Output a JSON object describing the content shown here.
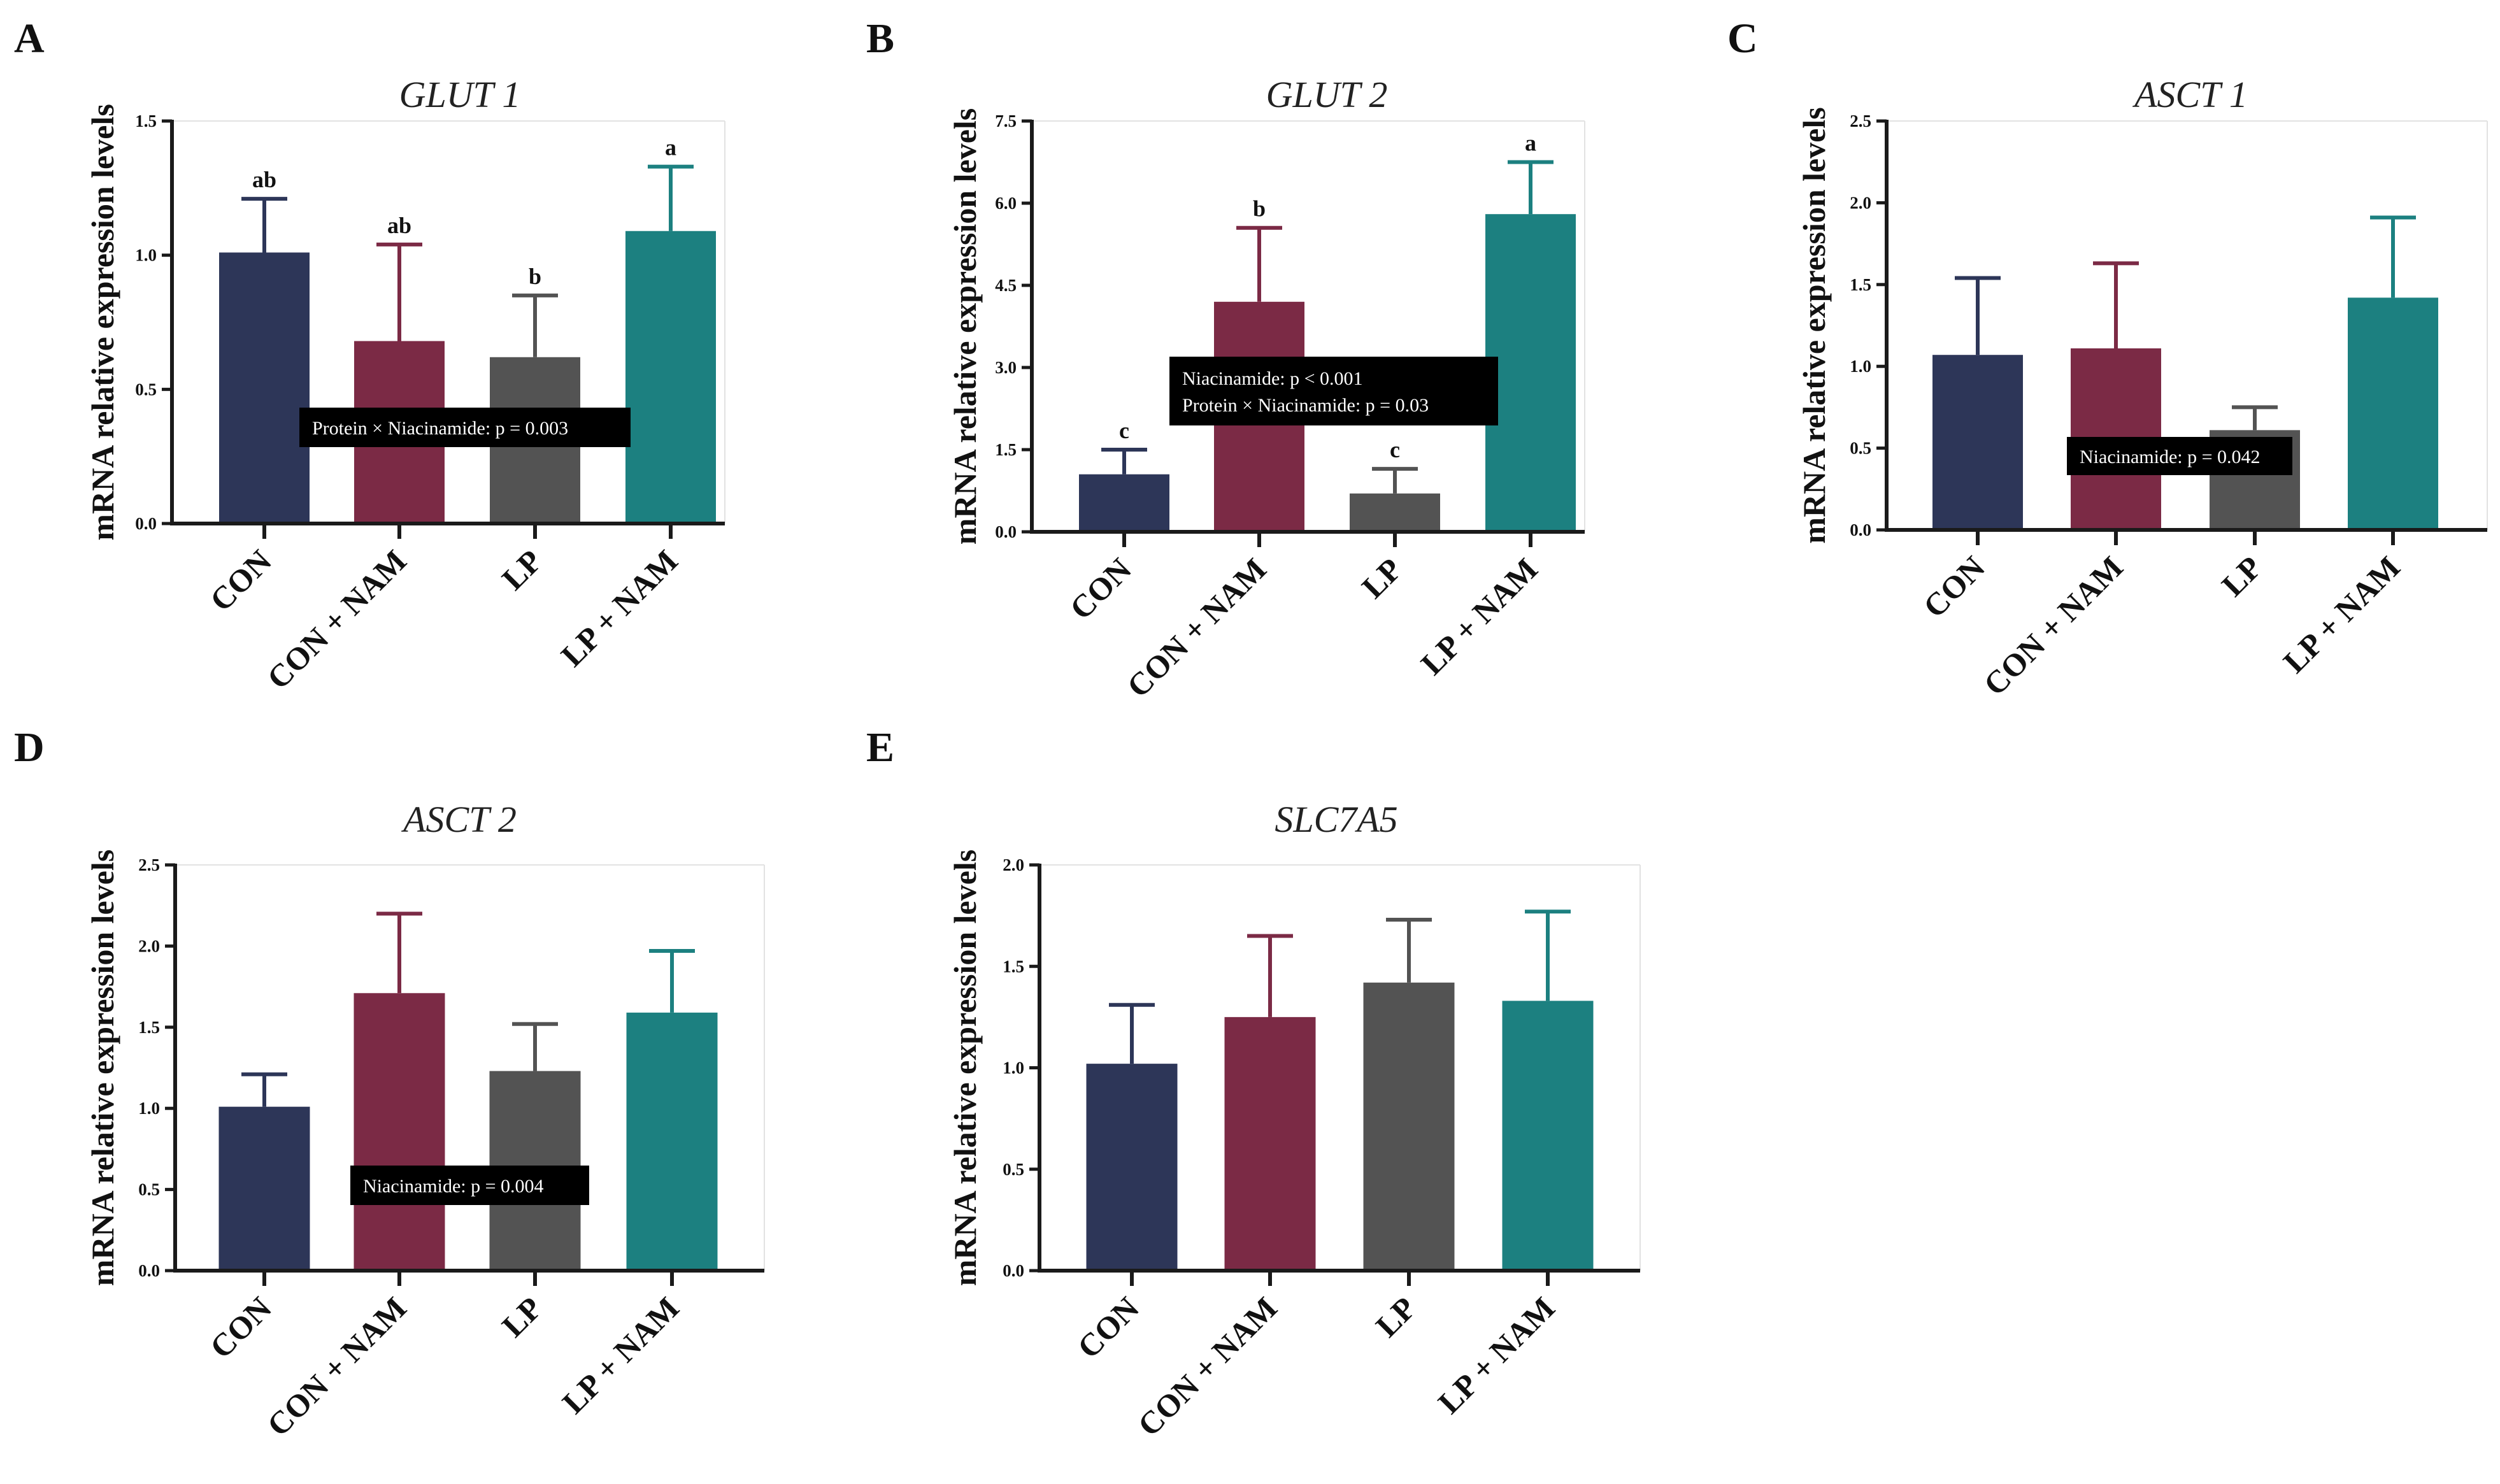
{
  "colors": {
    "CON": "#2d3658",
    "CON + NAM": "#7b2a45",
    "LP": "#535353",
    "LP + NAM": "#1c8080",
    "axis": "#1a1a1a",
    "annotation_bg": "#000000"
  },
  "chart_data": [
    {
      "type": "bar",
      "panel": "A",
      "title": "GLUT 1",
      "ylabel": "mRNA relative expression levels",
      "ylim": [
        0,
        1.5
      ],
      "yticks": [
        "0.0",
        "0.5",
        "1.0",
        "1.5"
      ],
      "categories": [
        "CON",
        "CON + NAM",
        "LP",
        "LP + NAM"
      ],
      "values": [
        1.01,
        0.68,
        0.62,
        1.09
      ],
      "errors": [
        0.2,
        0.36,
        0.23,
        0.24
      ],
      "sig_letters": [
        "ab",
        "ab",
        "b",
        "a"
      ],
      "annotations": [
        "Protein × Niacinamide: p = 0.003"
      ]
    },
    {
      "type": "bar",
      "panel": "B",
      "title": "GLUT 2",
      "ylabel": "mRNA relative expression levels",
      "ylim": [
        0,
        7.5
      ],
      "yticks": [
        "0.0",
        "1.5",
        "3.0",
        "4.5",
        "6.0",
        "7.5"
      ],
      "categories": [
        "CON",
        "CON + NAM",
        "LP",
        "LP + NAM"
      ],
      "values": [
        1.05,
        4.2,
        0.7,
        5.8
      ],
      "errors": [
        0.45,
        1.35,
        0.45,
        0.95
      ],
      "sig_letters": [
        "c",
        "b",
        "c",
        "a"
      ],
      "annotations": [
        "Niacinamide: p < 0.001",
        "Protein × Niacinamide: p = 0.03"
      ]
    },
    {
      "type": "bar",
      "panel": "C",
      "title": "ASCT 1",
      "ylabel": "mRNA relative expression levels",
      "ylim": [
        0,
        2.5
      ],
      "yticks": [
        "0.0",
        "0.5",
        "1.0",
        "1.5",
        "2.0",
        "2.5"
      ],
      "categories": [
        "CON",
        "CON + NAM",
        "LP",
        "LP + NAM"
      ],
      "values": [
        1.07,
        1.11,
        0.61,
        1.42
      ],
      "errors": [
        0.47,
        0.52,
        0.14,
        0.49
      ],
      "sig_letters": [
        "",
        "",
        "",
        ""
      ],
      "annotations": [
        "Niacinamide: p = 0.042"
      ]
    },
    {
      "type": "bar",
      "panel": "D",
      "title": "ASCT 2",
      "ylabel": "mRNA relative expression levels",
      "ylim": [
        0,
        2.5
      ],
      "yticks": [
        "0.0",
        "0.5",
        "1.0",
        "1.5",
        "2.0",
        "2.5"
      ],
      "categories": [
        "CON",
        "CON + NAM",
        "LP",
        "LP + NAM"
      ],
      "values": [
        1.01,
        1.71,
        1.23,
        1.59
      ],
      "errors": [
        0.2,
        0.49,
        0.29,
        0.38
      ],
      "sig_letters": [
        "",
        "",
        "",
        ""
      ],
      "annotations": [
        "Niacinamide: p = 0.004"
      ]
    },
    {
      "type": "bar",
      "panel": "E",
      "title": "SLC7A5",
      "ylabel": "mRNA relative expression levels",
      "ylim": [
        0,
        2.0
      ],
      "yticks": [
        "0.0",
        "0.5",
        "1.0",
        "1.5",
        "2.0"
      ],
      "categories": [
        "CON",
        "CON + NAM",
        "LP",
        "LP + NAM"
      ],
      "values": [
        1.02,
        1.25,
        1.42,
        1.33
      ],
      "errors": [
        0.29,
        0.4,
        0.31,
        0.44
      ],
      "sig_letters": [
        "",
        "",
        "",
        ""
      ],
      "annotations": []
    }
  ]
}
